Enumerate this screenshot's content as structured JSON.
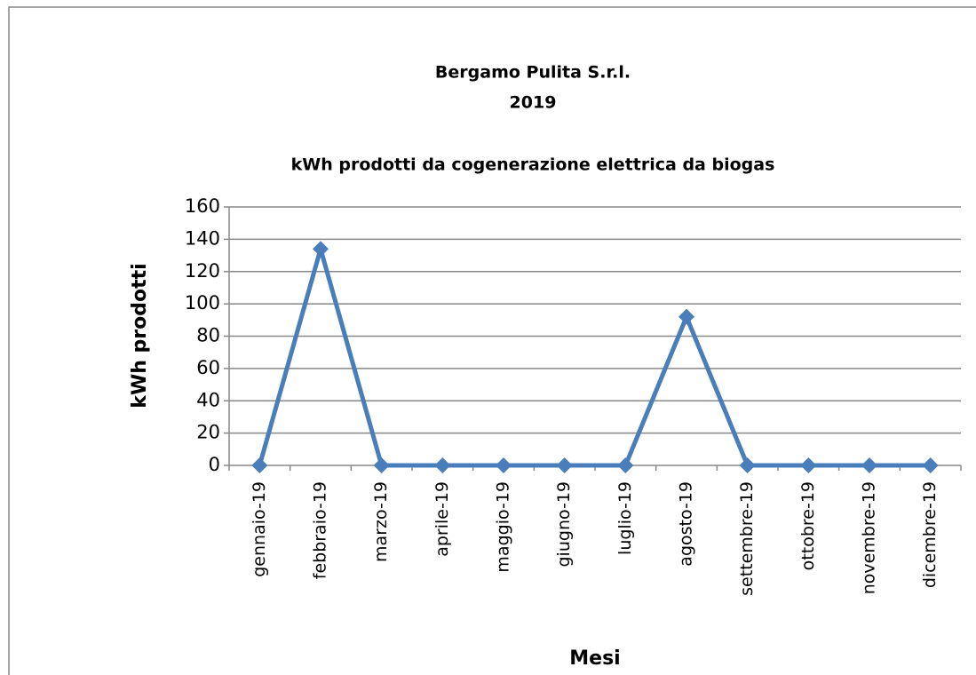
{
  "chart_data": {
    "type": "line",
    "title": [
      "Bergamo Pulita S.r.l.",
      "2019"
    ],
    "subtitle": "kWh prodotti da cogenerazione elettrica da biogas",
    "y_label": "kWh prodotti",
    "x_label": "Mesi",
    "categories": [
      "gennaio-19",
      "febbraio-19",
      "marzo-19",
      "aprile-19",
      "maggio-19",
      "giugno-19",
      "luglio-19",
      "agosto-19",
      "settembre-19",
      "ottobre-19",
      "novembre-19",
      "dicembre-19"
    ],
    "series": [
      {
        "name": "kWh prodotti",
        "color": "#4a7ebb",
        "values": [
          0,
          134,
          0,
          0,
          0,
          0,
          0,
          92,
          0,
          0,
          0,
          0
        ]
      }
    ],
    "ylim": [
      0,
      160
    ],
    "yticks": [
      0,
      20,
      40,
      60,
      80,
      100,
      120,
      140,
      160
    ],
    "grid": true,
    "legend": false
  }
}
